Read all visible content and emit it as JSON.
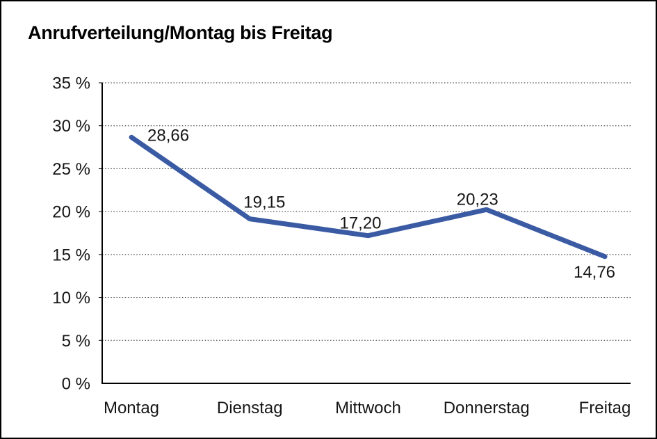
{
  "title": "Anrufverteilung/Montag bis Freitag",
  "chart_data": {
    "type": "line",
    "title": "Anrufverteilung/Montag bis Freitag",
    "categories": [
      "Montag",
      "Dienstag",
      "Mittwoch",
      "Donnerstag",
      "Freitag"
    ],
    "values": [
      28.66,
      19.15,
      17.2,
      20.23,
      14.76
    ],
    "point_labels": [
      "28,66",
      "19,15",
      "17,20",
      "20,23",
      "14,76"
    ],
    "series_name": "Anrufverteilung",
    "xlabel": "",
    "ylabel": "",
    "y_tick_labels": [
      "0 %",
      "5 %",
      "10 %",
      "15 %",
      "20 %",
      "25 %",
      "30 %",
      "35 %"
    ],
    "ylim": [
      0,
      35
    ],
    "y_tick_step": 5,
    "unit": "%",
    "grid": "horizontal-dotted",
    "legend": "none",
    "line_color": "#3a5ba4",
    "axis_color": "#000000",
    "gridline_color": "#4a4a4a",
    "label_color": "#161616"
  }
}
